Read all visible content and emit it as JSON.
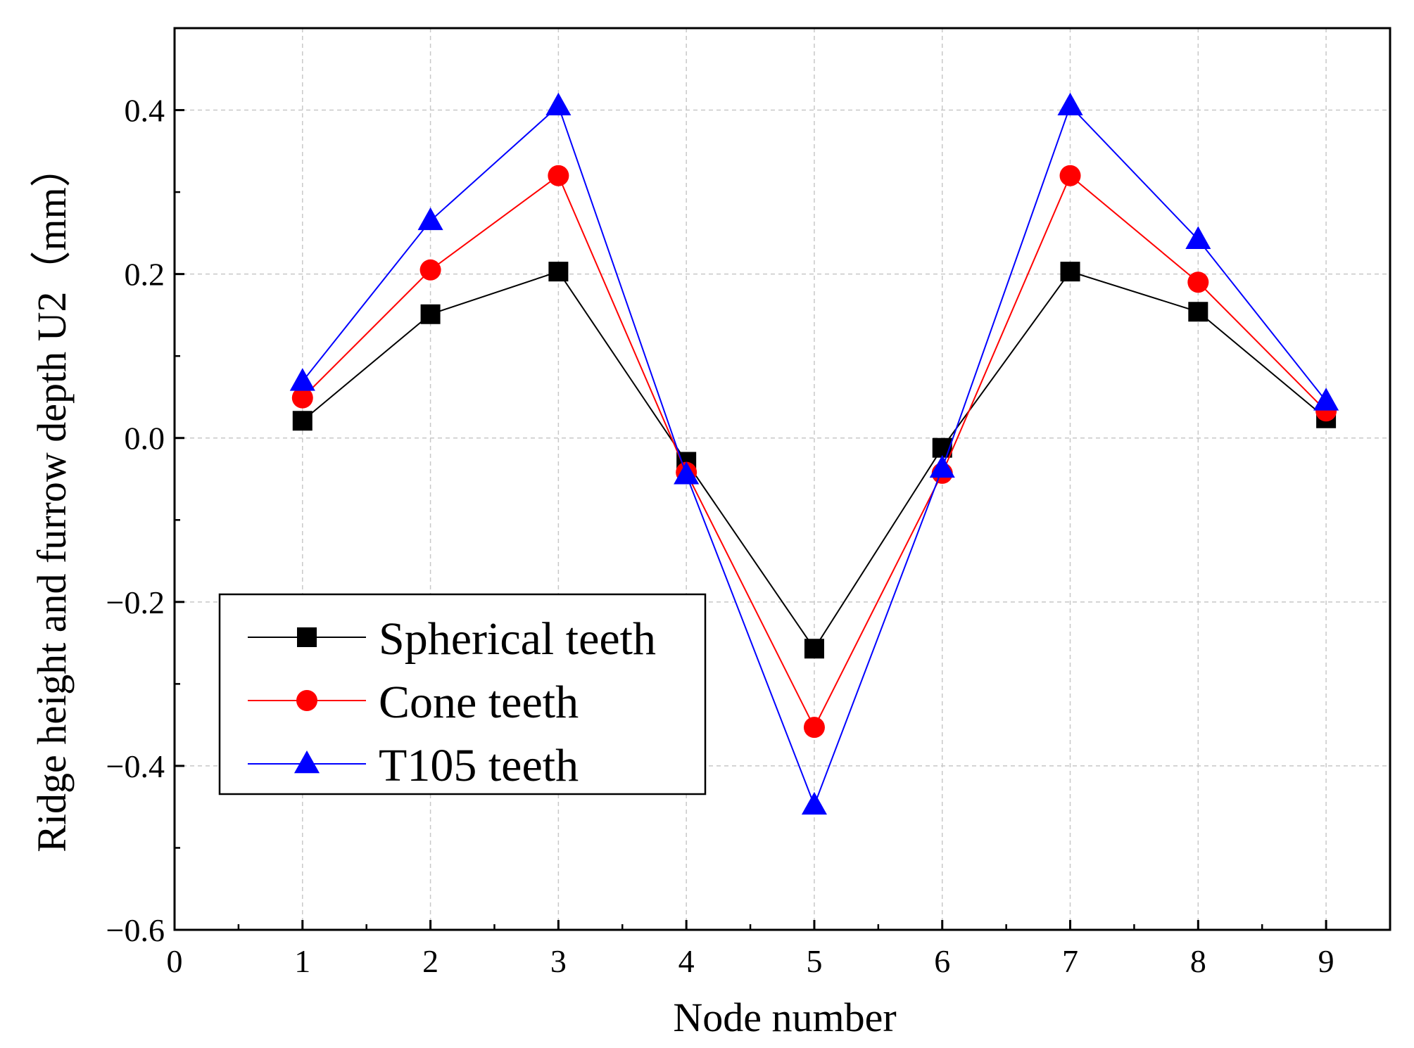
{
  "chart_data": {
    "type": "line",
    "title": "",
    "xlabel": "Node number",
    "ylabel": "Ridge height and furrow depth U2（mm）",
    "xlim": [
      0,
      9.5
    ],
    "ylim": [
      -0.6,
      0.5
    ],
    "x_ticks": [
      0,
      1,
      2,
      3,
      4,
      5,
      6,
      7,
      8,
      9
    ],
    "y_ticks": [
      -0.6,
      -0.4,
      -0.2,
      0.0,
      0.2,
      0.4
    ],
    "x_tick_labels": [
      "0",
      "1",
      "2",
      "3",
      "4",
      "5",
      "6",
      "7",
      "8",
      "9"
    ],
    "y_tick_labels": [
      "−0.6",
      "−0.4",
      "−0.2",
      "0.0",
      "0.2",
      "0.4"
    ],
    "grid": true,
    "legend_position": "bottom-left",
    "x": [
      1,
      2,
      3,
      4,
      5,
      6,
      7,
      8,
      9
    ],
    "series": [
      {
        "name": "Spherical teeth",
        "color": "#000000",
        "marker": "square",
        "values": [
          0.021,
          0.151,
          0.203,
          -0.029,
          -0.257,
          -0.012,
          0.203,
          0.154,
          0.024
        ]
      },
      {
        "name": "Cone teeth",
        "color": "#ff0000",
        "marker": "circle",
        "values": [
          0.049,
          0.205,
          0.32,
          -0.042,
          -0.353,
          -0.043,
          0.32,
          0.19,
          0.033
        ]
      },
      {
        "name": "T105 teeth",
        "color": "#0000ff",
        "marker": "triangle",
        "values": [
          0.069,
          0.265,
          0.405,
          -0.045,
          -0.448,
          -0.037,
          0.405,
          0.242,
          0.045
        ]
      }
    ]
  }
}
